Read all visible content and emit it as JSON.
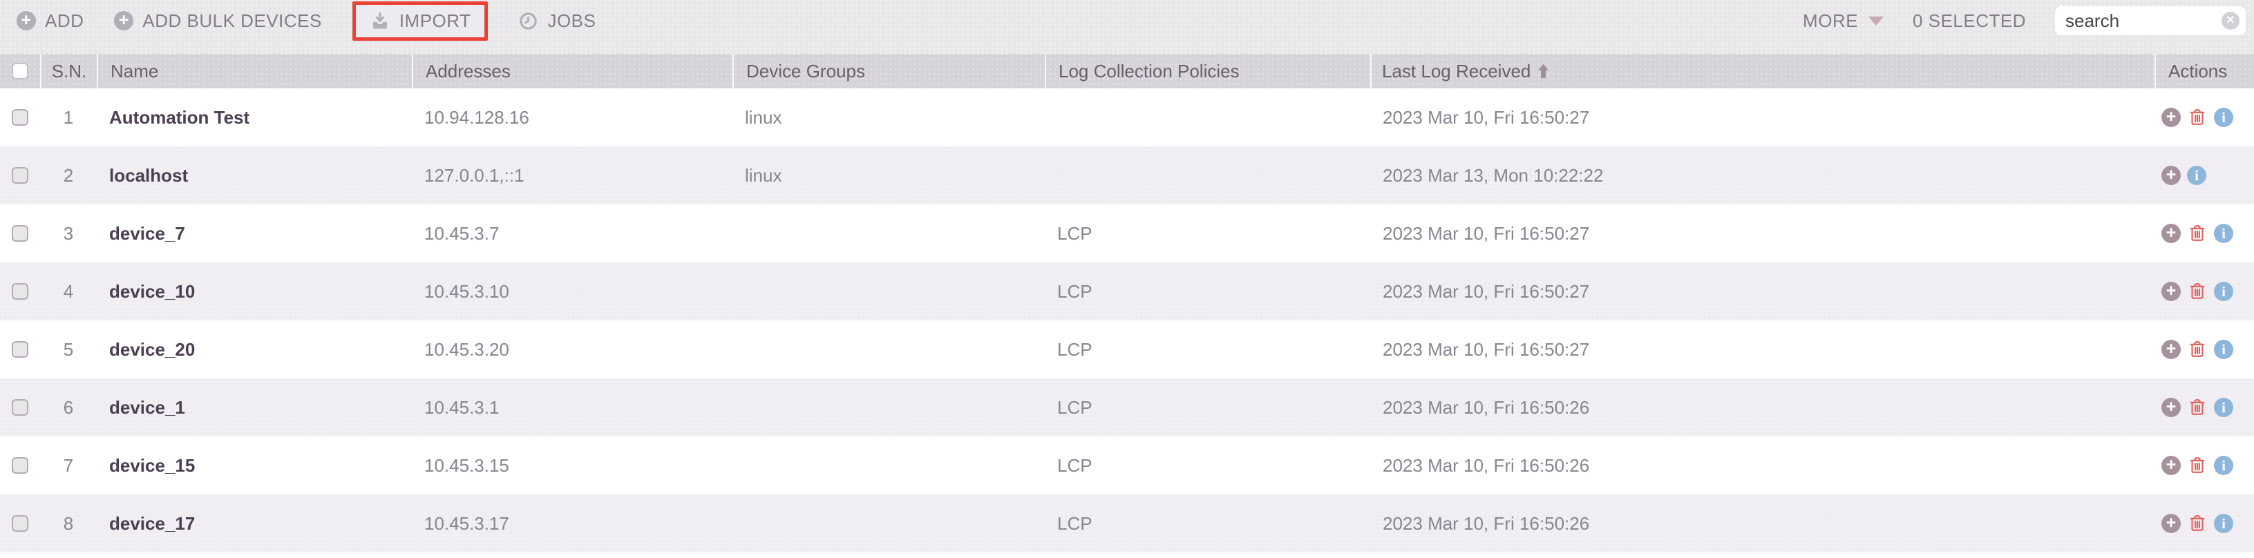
{
  "toolbar": {
    "buttons": [
      {
        "label": "ADD",
        "icon": "plus-circle"
      },
      {
        "label": "ADD BULK DEVICES",
        "icon": "plus-circle"
      },
      {
        "label": "IMPORT",
        "icon": "import-download",
        "highlighted": true
      },
      {
        "label": "JOBS",
        "icon": "clock"
      }
    ],
    "more_label": "MORE",
    "selected_count_label": "0 SELECTED",
    "search": {
      "value": "search",
      "clear_icon": "circle-x"
    }
  },
  "table": {
    "columns": [
      "S.N.",
      "Name",
      "Addresses",
      "Device Groups",
      "Log Collection Policies",
      "Last Log Received",
      "Actions"
    ],
    "sort": {
      "column": "Last Log Received",
      "direction": "ascending"
    },
    "rows": [
      {
        "sn": "1",
        "name": "Automation Test",
        "addresses": "10.94.128.16",
        "device_groups": "linux",
        "log_collection_policies": "",
        "last_log_received": "2023 Mar 10, Fri 16:50:27",
        "actions": [
          "add",
          "delete",
          "info"
        ]
      },
      {
        "sn": "2",
        "name": "localhost",
        "addresses": "127.0.0.1,::1",
        "device_groups": "linux",
        "log_collection_policies": "",
        "last_log_received": "2023 Mar 13, Mon 10:22:22",
        "actions": [
          "add",
          "info"
        ]
      },
      {
        "sn": "3",
        "name": "device_7",
        "addresses": "10.45.3.7",
        "device_groups": "",
        "log_collection_policies": "LCP",
        "last_log_received": "2023 Mar 10, Fri 16:50:27",
        "actions": [
          "add",
          "delete",
          "info"
        ]
      },
      {
        "sn": "4",
        "name": "device_10",
        "addresses": "10.45.3.10",
        "device_groups": "",
        "log_collection_policies": "LCP",
        "last_log_received": "2023 Mar 10, Fri 16:50:27",
        "actions": [
          "add",
          "delete",
          "info"
        ]
      },
      {
        "sn": "5",
        "name": "device_20",
        "addresses": "10.45.3.20",
        "device_groups": "",
        "log_collection_policies": "LCP",
        "last_log_received": "2023 Mar 10, Fri 16:50:27",
        "actions": [
          "add",
          "delete",
          "info"
        ]
      },
      {
        "sn": "6",
        "name": "device_1",
        "addresses": "10.45.3.1",
        "device_groups": "",
        "log_collection_policies": "LCP",
        "last_log_received": "2023 Mar 10, Fri 16:50:26",
        "actions": [
          "add",
          "delete",
          "info"
        ]
      },
      {
        "sn": "7",
        "name": "device_15",
        "addresses": "10.45.3.15",
        "device_groups": "",
        "log_collection_policies": "LCP",
        "last_log_received": "2023 Mar 10, Fri 16:50:26",
        "actions": [
          "add",
          "delete",
          "info"
        ]
      },
      {
        "sn": "8",
        "name": "device_17",
        "addresses": "10.45.3.17",
        "device_groups": "",
        "log_collection_policies": "LCP",
        "last_log_received": "2023 Mar 10, Fri 16:50:26",
        "actions": [
          "add",
          "delete",
          "info"
        ]
      }
    ]
  },
  "colors": {
    "highlight_box": "#e94337",
    "toolbar_bg": "#e9e7ea",
    "header_bg": "#d6d3d9",
    "row_alt_bg": "#f1eff3",
    "action_add": "#a6929d",
    "action_delete": "#e2615c",
    "action_info": "#8db6da"
  }
}
